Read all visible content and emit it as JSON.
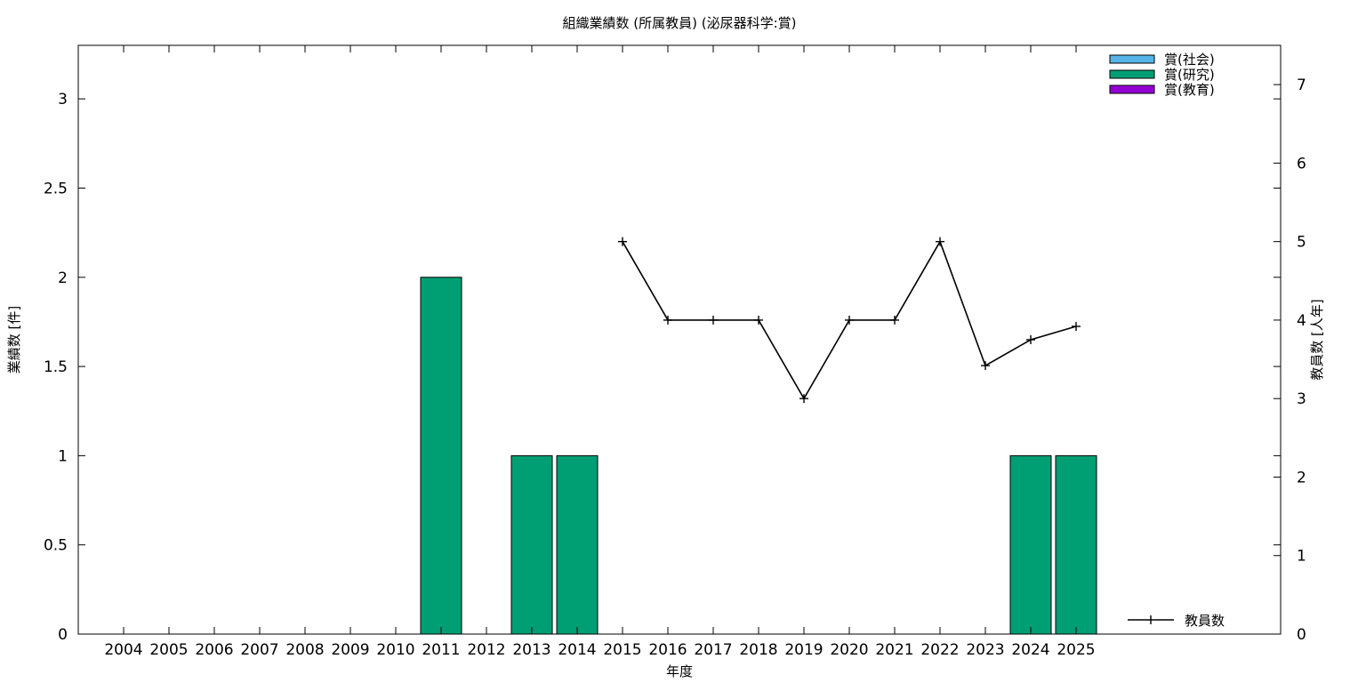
{
  "chart_data": {
    "type": "bar",
    "title": "組織業績数 (所属教員) (泌尿器科学:賞)",
    "xlabel": "年度",
    "ylabel": "業績数 [件]",
    "y2label": "教員数 [人年]",
    "categories": [
      "2004",
      "2005",
      "2006",
      "2007",
      "2008",
      "2009",
      "2010",
      "2011",
      "2012",
      "2013",
      "2014",
      "2015",
      "2016",
      "2017",
      "2018",
      "2019",
      "2020",
      "2021",
      "2022",
      "2023",
      "2024",
      "2025"
    ],
    "ylim": [
      0,
      3.3
    ],
    "yticks": [
      "0",
      "0.5",
      "1",
      "1.5",
      "2",
      "2.5",
      "3"
    ],
    "y2lim": [
      0,
      7.5
    ],
    "y2ticks": [
      "0",
      "1",
      "2",
      "3",
      "4",
      "5",
      "6",
      "7"
    ],
    "stacked": true,
    "legend_position": "top-right",
    "series": [
      {
        "name": "賞(社会)",
        "color": "#56b4e9",
        "values": [
          0,
          0,
          0,
          0,
          0,
          0,
          0,
          0,
          0,
          0,
          0,
          0,
          0,
          0,
          0,
          0,
          0,
          0,
          0,
          0,
          0,
          0
        ]
      },
      {
        "name": "賞(研究)",
        "color": "#009e73",
        "values": [
          0,
          0,
          0,
          0,
          0,
          0,
          0,
          2,
          0,
          1,
          1,
          0,
          0,
          0,
          0,
          0,
          0,
          0,
          0,
          0,
          1,
          1
        ]
      },
      {
        "name": "賞(教育)",
        "color": "#9400d3",
        "values": [
          0,
          0,
          0,
          0,
          0,
          0,
          0,
          0,
          0,
          0,
          0,
          0,
          0,
          0,
          0,
          0,
          0,
          0,
          0,
          0,
          0,
          0
        ]
      }
    ],
    "line_series": {
      "name": "教員数",
      "color": "#000000",
      "axis": "y2",
      "x": [
        "2015",
        "2016",
        "2017",
        "2018",
        "2019",
        "2020",
        "2021",
        "2022",
        "2023",
        "2024",
        "2025"
      ],
      "values": [
        5,
        4,
        4,
        4,
        3,
        4,
        4,
        5,
        3.42,
        3.75,
        3.92
      ]
    }
  }
}
